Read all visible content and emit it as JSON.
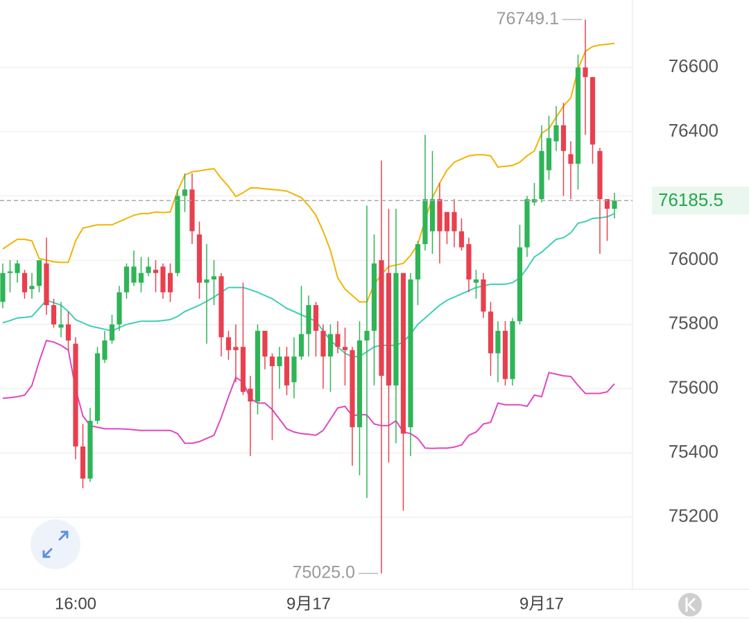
{
  "chart_data": {
    "type": "candlestick",
    "categories": [
      null,
      null,
      null,
      null,
      null,
      null,
      null,
      null,
      null,
      null,
      "16:00",
      null,
      null,
      null,
      null,
      null,
      null,
      null,
      null,
      null,
      null,
      null,
      null,
      null,
      null,
      null,
      null,
      null,
      null,
      null,
      null,
      null,
      null,
      null,
      null,
      null,
      null,
      null,
      null,
      null,
      null,
      null,
      "9月17",
      null,
      null,
      null,
      null,
      null,
      null,
      null,
      null,
      null,
      null,
      null,
      null,
      null,
      null,
      null,
      null,
      null,
      null,
      null,
      null,
      null,
      null,
      null,
      null,
      null,
      null,
      null,
      null,
      null,
      null,
      null,
      "9月17",
      null,
      null,
      null,
      null,
      null,
      null,
      null,
      null,
      null,
      null
    ],
    "open": [
      75870,
      75960,
      75960,
      75960,
      75910,
      75920,
      75990,
      75860,
      75790,
      75800,
      75740,
      75420,
      75320,
      75500,
      75690,
      75750,
      75800,
      75900,
      75930,
      75930,
      75960,
      75970,
      75980,
      75960,
      75960,
      76200,
      76220,
      76080,
      75930,
      75940,
      75950,
      75760,
      75730,
      75730,
      75600,
      75560,
      75780,
      75700,
      75670,
      75700,
      75620,
      75700,
      75770,
      75860,
      75780,
      75700,
      75770,
      75730,
      75720,
      75480,
      75750,
      75780,
      76000,
      75960,
      75610,
      75960,
      75480,
      75940,
      76050,
      76090,
      76190,
      76150,
      76150,
      76090,
      76050,
      75930,
      75940,
      75840,
      75710,
      75780,
      75630,
      75810,
      76040,
      76180,
      76190,
      76280,
      76370,
      76420,
      76330,
      76300,
      76600,
      76570,
      76340,
      76190,
      76160
    ],
    "high": [
      75990,
      76000,
      76000,
      75970,
      75960,
      76000,
      76070,
      75880,
      75870,
      75840,
      75760,
      75490,
      75540,
      75730,
      75780,
      75830,
      75920,
      75990,
      76030,
      76010,
      76010,
      76000,
      75990,
      75990,
      76220,
      76270,
      76270,
      76120,
      76050,
      76000,
      75960,
      75780,
      75800,
      75930,
      75640,
      75800,
      75780,
      75710,
      75730,
      75730,
      75760,
      75920,
      75890,
      75870,
      75800,
      75800,
      75810,
      75790,
      75730,
      75810,
      76170,
      76080,
      76310,
      76160,
      76160,
      75960,
      75960,
      76060,
      76390,
      76340,
      76240,
      76150,
      76190,
      76130,
      76070,
      75970,
      75960,
      75870,
      75810,
      75810,
      75820,
      76110,
      76200,
      76240,
      76420,
      76450,
      76480,
      76490,
      76370,
      76640,
      76749.1,
      76570,
      76350,
      76190,
      76210
    ],
    "low": [
      75850,
      75900,
      75930,
      75880,
      75880,
      75900,
      75830,
      75790,
      75760,
      75720,
      75380,
      75290,
      75310,
      75490,
      75680,
      75740,
      75780,
      75880,
      75920,
      75900,
      75950,
      75900,
      75880,
      75870,
      75950,
      76150,
      76050,
      75880,
      75740,
      75860,
      75700,
      75690,
      75620,
      75580,
      75390,
      75520,
      75660,
      75440,
      75600,
      75580,
      75570,
      75690,
      75700,
      75700,
      75600,
      75590,
      75710,
      75610,
      75360,
      75330,
      75260,
      75610,
      75025,
      75370,
      75430,
      75220,
      75390,
      75860,
      76030,
      76020,
      75990,
      76050,
      76040,
      76030,
      75900,
      75880,
      75820,
      75640,
      75620,
      75610,
      75610,
      75800,
      76010,
      76170,
      76180,
      76250,
      76340,
      76200,
      76190,
      76220,
      76390,
      76300,
      76020,
      76060,
      76130
    ],
    "close": [
      75960,
      75965,
      75990,
      75900,
      75920,
      76000,
      75860,
      75800,
      75800,
      75750,
      75420,
      75320,
      75500,
      75710,
      75750,
      75800,
      75900,
      75980,
      75980,
      75960,
      75980,
      75960,
      75900,
      75900,
      76200,
      76220,
      76090,
      75930,
      75940,
      75950,
      75760,
      75720,
      75720,
      75590,
      75560,
      75780,
      75700,
      75670,
      75700,
      75610,
      75700,
      75770,
      75860,
      75780,
      75700,
      75770,
      75730,
      75720,
      75480,
      75750,
      75780,
      75990,
      75640,
      75610,
      75960,
      75460,
      75940,
      76050,
      76190,
      76190,
      76090,
      76090,
      76090,
      76040,
      75940,
      75940,
      75840,
      75710,
      75780,
      75630,
      75810,
      76040,
      76190,
      76190,
      76340,
      76380,
      76420,
      76340,
      76300,
      76600,
      76570,
      76360,
      76190,
      76160,
      76185.5
    ],
    "up_color": "#2fb457",
    "down_color": "#e8404f",
    "bands": [
      {
        "color": "#f0b400",
        "values": [
          76035,
          76050,
          76065,
          76065,
          76060,
          76005,
          76000,
          75995,
          75993,
          75993,
          76060,
          76100,
          76105,
          76110,
          76110,
          76110,
          76120,
          76130,
          76140,
          76145,
          76145,
          76150,
          76148,
          76150,
          76215,
          76265,
          76275,
          76278,
          76282,
          76285,
          76255,
          76230,
          76198,
          76210,
          76225,
          76225,
          76222,
          76220,
          76218,
          76215,
          76205,
          76195,
          76170,
          76140,
          76090,
          76030,
          75945,
          75910,
          75890,
          75870,
          75870,
          75925,
          75955,
          75980,
          75985,
          75990,
          76015,
          76050,
          76125,
          76195,
          76240,
          76280,
          76305,
          76315,
          76325,
          76328,
          76328,
          76325,
          76290,
          76292,
          76295,
          76305,
          76325,
          76340,
          76395,
          76410,
          76445,
          76480,
          76505,
          76595,
          76650,
          76665,
          76670,
          76672,
          76675
        ]
      },
      {
        "color": "#3ccfb4",
        "values": [
          75805,
          75812,
          75820,
          75822,
          75825,
          75850,
          75875,
          75868,
          75860,
          75840,
          75815,
          75805,
          75795,
          75790,
          75785,
          75780,
          75790,
          75800,
          75805,
          75810,
          75810,
          75810,
          75812,
          75815,
          75825,
          75840,
          75850,
          75860,
          75872,
          75885,
          75900,
          75915,
          75915,
          75915,
          75908,
          75900,
          75890,
          75880,
          75865,
          75850,
          75840,
          75830,
          75820,
          75810,
          75780,
          75750,
          75730,
          75710,
          75700,
          75700,
          75715,
          75730,
          75735,
          75735,
          75735,
          75745,
          75770,
          75800,
          75820,
          75840,
          75860,
          75875,
          75885,
          75895,
          75905,
          75915,
          75920,
          75925,
          75925,
          75925,
          75930,
          75945,
          75975,
          76010,
          76025,
          76045,
          76065,
          76070,
          76085,
          76115,
          76120,
          76130,
          76132,
          76135,
          76145
        ]
      },
      {
        "color": "#e046c0",
        "values": [
          75570,
          75572,
          75575,
          75580,
          75610,
          75685,
          75750,
          75745,
          75735,
          75720,
          75600,
          75515,
          75485,
          75480,
          75475,
          75475,
          75475,
          75474,
          75472,
          75470,
          75470,
          75470,
          75470,
          75470,
          75460,
          75430,
          75430,
          75435,
          75445,
          75455,
          75510,
          75575,
          75635,
          75620,
          75570,
          75555,
          75555,
          75535,
          75505,
          75475,
          75465,
          75460,
          75458,
          75455,
          75470,
          75505,
          75540,
          75545,
          75515,
          75520,
          75518,
          75490,
          75485,
          75485,
          75500,
          75465,
          75460,
          75445,
          75415,
          75414,
          75415,
          75415,
          75418,
          75425,
          75455,
          75465,
          75490,
          75495,
          75555,
          75550,
          75550,
          75550,
          75545,
          75580,
          75575,
          75650,
          75645,
          75640,
          75638,
          75610,
          75585,
          75585,
          75585,
          75590,
          75615
        ]
      }
    ],
    "ylim": [
      74975,
      76810
    ],
    "yticks": [
      75200,
      75400,
      75600,
      75800,
      76000,
      76200,
      76400,
      76600
    ],
    "ytick_labels_hidden": [
      76200
    ],
    "grid": true,
    "high_label": "76749.1",
    "low_label": "75025.0",
    "last_price": 76185.5
  }
}
